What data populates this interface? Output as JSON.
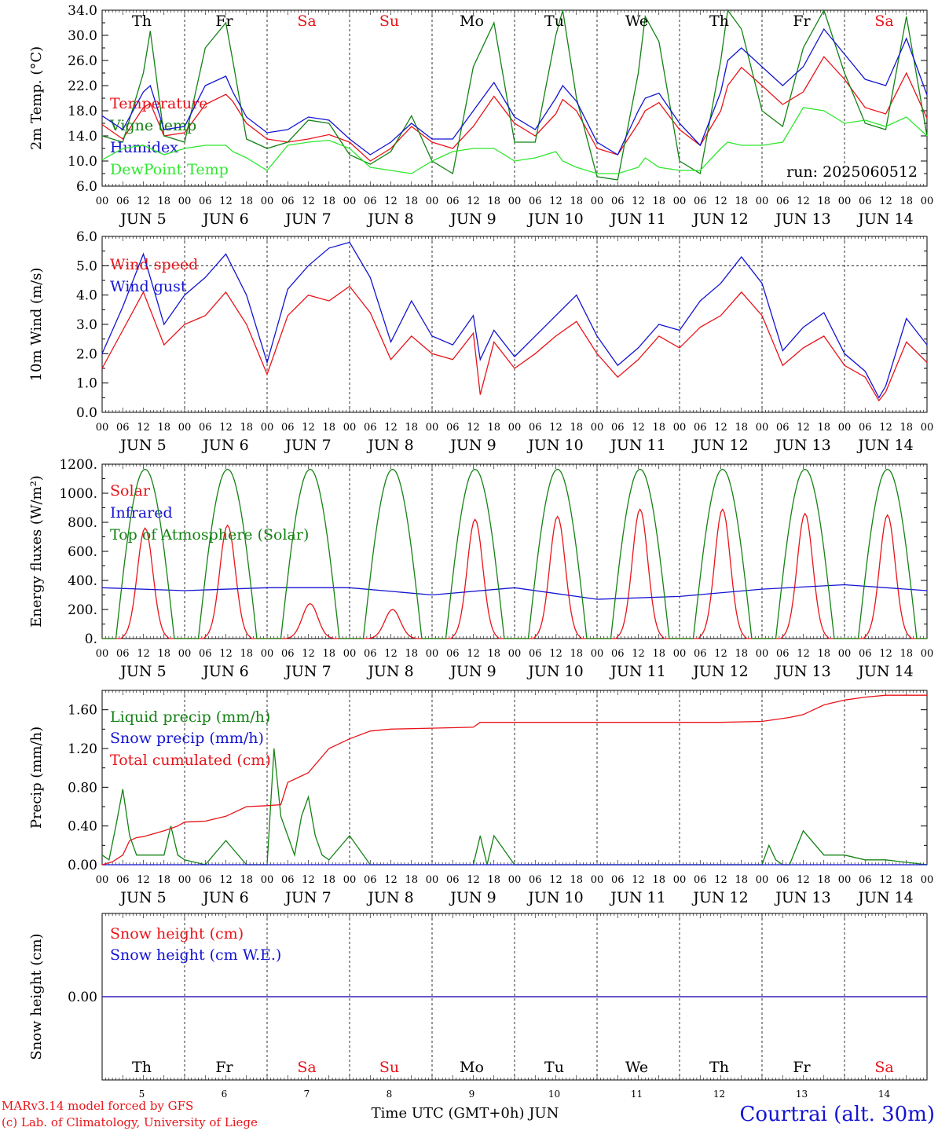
{
  "run_label": "run: 2025060512",
  "footer": {
    "model_line1": "MARv3.14 model forced by GFS",
    "model_line2": "(c) Lab. of Climatology, University of Liege",
    "xlabel": "Time UTC (GMT+0h) JUN",
    "station": "Courtrai (alt. 30m)"
  },
  "colors": {
    "red": "#e8141a",
    "blue": "#1414d2",
    "green": "#148214",
    "lightgreen": "#2ee82e",
    "weekend": "#e8141a",
    "weekday": "#000000"
  },
  "days": {
    "dates": [
      5,
      6,
      7,
      8,
      9,
      10,
      11,
      12,
      13,
      14
    ],
    "names": [
      "Th",
      "Fr",
      "Sa",
      "Su",
      "Mo",
      "Tu",
      "We",
      "Th",
      "Fr",
      "Sa"
    ],
    "weekend": [
      false,
      false,
      true,
      true,
      false,
      false,
      false,
      false,
      false,
      true
    ],
    "month_label": "JUN",
    "hour_ticks": [
      "00",
      "06",
      "12",
      "18"
    ],
    "end_tick": "00"
  },
  "chart_data": [
    {
      "type": "line",
      "ylabel": "2m Temp. (°C)",
      "ylim": [
        6,
        34
      ],
      "yticks": [
        "6.0",
        "10.0",
        "14.0",
        "18.0",
        "22.0",
        "26.0",
        "30.0",
        "34.0"
      ],
      "yticks_values": [
        6,
        10,
        14,
        18,
        22,
        26,
        30,
        34
      ],
      "x_hours": [
        0,
        6,
        12,
        14,
        18,
        24,
        30,
        36,
        38,
        42,
        48,
        54,
        60,
        66,
        72,
        78,
        84,
        90,
        96,
        102,
        108,
        114,
        120,
        126,
        132,
        134,
        138,
        144,
        150,
        156,
        158,
        162,
        168,
        174,
        180,
        182,
        186,
        192,
        198,
        204,
        210,
        216,
        222,
        228,
        234,
        240
      ],
      "series": [
        {
          "name": "Temperature",
          "color": "red",
          "values": [
            15.8,
            13.5,
            18.5,
            19.2,
            14.0,
            14.5,
            19.0,
            20.6,
            19.5,
            16.0,
            13.5,
            13.0,
            13.5,
            14.2,
            13.0,
            10.0,
            12.0,
            15.5,
            13.0,
            12.0,
            15.5,
            20.3,
            16.0,
            14.0,
            17.5,
            19.8,
            18.0,
            12.0,
            11.0,
            16.0,
            18.0,
            19.3,
            15.0,
            12.5,
            18.0,
            22.0,
            24.9,
            22.0,
            19.0,
            21.0,
            26.6,
            23.0,
            18.5,
            17.5,
            24.0,
            16.8
          ]
        },
        {
          "name": "Vigne temp",
          "color": "green",
          "values": [
            14.0,
            13.0,
            24.0,
            30.7,
            14.0,
            13.0,
            28.0,
            32.0,
            26.0,
            13.5,
            12.0,
            13.0,
            16.5,
            16.0,
            11.0,
            9.5,
            11.5,
            17.2,
            10.0,
            8.0,
            25.0,
            32.0,
            13.0,
            13.0,
            30.0,
            34.0,
            20.0,
            7.5,
            7.0,
            24.0,
            33.0,
            29.0,
            10.0,
            8.0,
            26.0,
            34.0,
            31.0,
            18.0,
            15.5,
            28.0,
            34.0,
            24.0,
            16.0,
            15.0,
            33.0,
            14.0
          ]
        },
        {
          "name": "Humidex",
          "color": "blue",
          "values": [
            17.2,
            15.0,
            21.0,
            22.0,
            15.0,
            15.5,
            22.0,
            23.5,
            21.0,
            17.0,
            14.5,
            15.0,
            17.0,
            16.5,
            13.5,
            11.0,
            13.0,
            16.0,
            13.5,
            13.5,
            18.0,
            22.5,
            17.0,
            15.0,
            20.0,
            22.0,
            19.5,
            13.0,
            11.0,
            18.0,
            20.0,
            20.8,
            16.0,
            12.5,
            21.0,
            26.0,
            28.0,
            25.0,
            22.0,
            25.0,
            31.0,
            27.0,
            23.0,
            22.0,
            29.5,
            20.5
          ]
        },
        {
          "name": "DewPoint Temp",
          "color": "lightgreen",
          "values": [
            10.2,
            12.0,
            12.5,
            12.0,
            11.0,
            12.0,
            12.5,
            12.5,
            11.5,
            10.5,
            8.5,
            12.5,
            13.0,
            13.3,
            12.0,
            9.0,
            8.5,
            8.0,
            10.0,
            11.5,
            12.0,
            12.0,
            10.0,
            10.5,
            11.5,
            10.0,
            9.0,
            8.0,
            8.0,
            9.0,
            10.5,
            9.0,
            8.5,
            8.5,
            12.0,
            13.0,
            12.5,
            12.5,
            13.0,
            18.5,
            18.0,
            16.0,
            16.5,
            15.5,
            17.0,
            14.0
          ]
        }
      ]
    },
    {
      "type": "line",
      "ylabel": "10m Wind (m/s)",
      "ylim": [
        0,
        6
      ],
      "yticks": [
        "0.0",
        "1.0",
        "2.0",
        "3.0",
        "4.0",
        "5.0",
        "6.0"
      ],
      "yticks_values": [
        0,
        1,
        2,
        3,
        4,
        5,
        6
      ],
      "dashed_ref": 5,
      "x_hours": [
        0,
        6,
        12,
        18,
        24,
        30,
        36,
        42,
        48,
        54,
        60,
        66,
        72,
        78,
        84,
        90,
        96,
        102,
        108,
        110,
        114,
        120,
        126,
        132,
        138,
        144,
        150,
        156,
        162,
        168,
        174,
        180,
        186,
        192,
        198,
        204,
        210,
        216,
        222,
        226,
        228,
        234,
        240
      ],
      "series": [
        {
          "name": "Wind speed",
          "color": "red",
          "values": [
            1.5,
            2.8,
            4.1,
            2.3,
            3.0,
            3.3,
            4.1,
            3.0,
            1.3,
            3.3,
            4.0,
            3.8,
            4.3,
            3.4,
            1.8,
            2.6,
            2.0,
            1.8,
            2.7,
            0.6,
            2.4,
            1.5,
            2.0,
            2.6,
            3.1,
            2.0,
            1.2,
            1.8,
            2.6,
            2.2,
            2.9,
            3.3,
            4.1,
            3.3,
            1.6,
            2.2,
            2.6,
            1.6,
            1.2,
            0.4,
            0.7,
            2.4,
            1.7
          ]
        },
        {
          "name": "Wind gust",
          "color": "blue",
          "values": [
            2.0,
            3.6,
            5.4,
            3.0,
            4.0,
            4.6,
            5.4,
            4.0,
            1.7,
            4.2,
            5.0,
            5.6,
            5.8,
            4.6,
            2.4,
            3.8,
            2.6,
            2.3,
            3.3,
            1.8,
            2.8,
            1.9,
            2.6,
            3.3,
            4.0,
            2.6,
            1.6,
            2.2,
            3.0,
            2.8,
            3.8,
            4.4,
            5.3,
            4.4,
            2.1,
            2.9,
            3.4,
            2.0,
            1.4,
            0.5,
            0.9,
            3.2,
            2.3
          ]
        }
      ]
    },
    {
      "type": "line",
      "ylabel": "Energy fluxes (W/m²)",
      "ylim": [
        0,
        1200
      ],
      "yticks": [
        "0.",
        "200.",
        "400.",
        "600.",
        "800.",
        "1000.",
        "1200."
      ],
      "yticks_values": [
        0,
        200,
        400,
        600,
        800,
        1000,
        1200
      ],
      "series": [
        {
          "name": "Solar",
          "color": "red",
          "daily_peak": [
            760,
            780,
            240,
            200,
            820,
            840,
            890,
            890,
            860,
            850
          ]
        },
        {
          "name": "Infrared",
          "color": "blue",
          "x_hours": [
            0,
            24,
            48,
            72,
            96,
            120,
            144,
            168,
            192,
            216,
            240
          ],
          "values": [
            350,
            330,
            350,
            350,
            300,
            350,
            270,
            290,
            340,
            370,
            330
          ]
        },
        {
          "name": "Top of Atmosphere (Solar)",
          "color": "green",
          "daily_peak": [
            1165,
            1165,
            1165,
            1165,
            1165,
            1165,
            1165,
            1165,
            1165,
            1165
          ]
        }
      ]
    },
    {
      "type": "line",
      "ylabel": "Precip (mm/h)",
      "ylim": [
        0,
        1.8
      ],
      "yticks": [
        "0.00",
        "0.40",
        "0.80",
        "1.20",
        "1.60"
      ],
      "yticks_values": [
        0,
        0.4,
        0.8,
        1.2,
        1.6
      ],
      "series": [
        {
          "name": "Liquid precip (mm/h)",
          "color": "green",
          "x_hours": [
            0,
            2,
            4,
            6,
            8,
            10,
            12,
            18,
            20,
            22,
            24,
            30,
            36,
            42,
            48,
            50,
            52,
            54,
            56,
            58,
            60,
            62,
            64,
            66,
            72,
            78,
            84,
            96,
            108,
            110,
            112,
            114,
            120,
            192,
            194,
            196,
            198,
            200,
            204,
            210,
            216,
            222,
            228,
            240
          ],
          "values": [
            0.1,
            0.05,
            0.4,
            0.78,
            0.3,
            0.1,
            0.1,
            0.1,
            0.4,
            0.1,
            0.05,
            0.0,
            0.25,
            0.0,
            0.0,
            1.2,
            0.5,
            0.3,
            0.1,
            0.5,
            0.7,
            0.3,
            0.1,
            0.05,
            0.3,
            0.0,
            0.0,
            0.0,
            0.0,
            0.3,
            0.0,
            0.3,
            0.0,
            0.0,
            0.2,
            0.05,
            0.0,
            0.0,
            0.35,
            0.1,
            0.1,
            0.05,
            0.05,
            0.0
          ]
        },
        {
          "name": "Snow precip (mm/h)",
          "color": "blue",
          "x_hours": [
            0,
            240
          ],
          "values": [
            0,
            0
          ]
        },
        {
          "name": "Total cumulated (cm)",
          "color": "red",
          "x_hours": [
            0,
            3,
            6,
            8,
            10,
            12,
            18,
            22,
            24,
            30,
            36,
            42,
            48,
            52,
            54,
            60,
            66,
            72,
            78,
            84,
            96,
            108,
            110,
            120,
            150,
            180,
            192,
            200,
            204,
            210,
            216,
            222,
            228,
            240
          ],
          "values": [
            0.0,
            0.03,
            0.1,
            0.25,
            0.28,
            0.29,
            0.35,
            0.4,
            0.44,
            0.45,
            0.5,
            0.6,
            0.61,
            0.62,
            0.85,
            0.95,
            1.2,
            1.3,
            1.38,
            1.4,
            1.41,
            1.42,
            1.47,
            1.47,
            1.47,
            1.47,
            1.48,
            1.52,
            1.55,
            1.65,
            1.7,
            1.73,
            1.75,
            1.75
          ]
        }
      ]
    },
    {
      "type": "line",
      "ylabel": "Snow height (cm)",
      "ylim": [
        -1,
        1
      ],
      "yticks": [
        "0.00"
      ],
      "yticks_values": [
        0
      ],
      "series": [
        {
          "name": "Snow height (cm)",
          "color": "red",
          "x_hours": [
            0,
            240
          ],
          "values": [
            0,
            0
          ]
        },
        {
          "name": "Snow height (cm W.E.)",
          "color": "blue",
          "x_hours": [
            0,
            240
          ],
          "values": [
            0,
            0
          ]
        }
      ]
    }
  ]
}
